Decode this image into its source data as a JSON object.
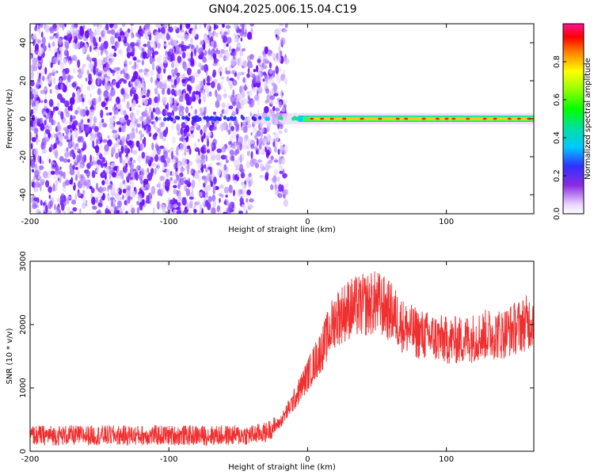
{
  "figure": {
    "title": "GN04.2025.006.15.04.C19",
    "xlim": [
      -200,
      163
    ]
  },
  "chart_data": [
    {
      "type": "heatmap",
      "title": "GN04.2025.006.15.04.C19",
      "xlabel": "Height of straight line (km)",
      "ylabel": "Frequency (Hz)",
      "xlim": [
        -200,
        163
      ],
      "ylim": [
        -50,
        50
      ],
      "xticks": [
        "-200",
        "-100",
        "0",
        "100"
      ],
      "xtick_values": [
        -200,
        -100,
        0,
        100
      ],
      "yticks": [
        "-40",
        "-20",
        "0",
        "20",
        "40"
      ],
      "ytick_values": [
        -40,
        -20,
        0,
        20,
        40
      ],
      "colorbar": {
        "label": "Normalized spectral amplitude",
        "range": [
          0,
          1
        ],
        "ticks": [
          "0.0",
          "0.2",
          "0.4",
          "0.6",
          "0.8"
        ],
        "tick_values": [
          0.0,
          0.2,
          0.4,
          0.6,
          0.8
        ],
        "colormap": "rainbow (white-violet-blue-cyan-green-yellow-red-magenta)"
      },
      "features": {
        "noise_region_x": [
          -200,
          -40
        ],
        "noise_edge_upper": [
          [
            -40,
            25
          ],
          [
            -20,
            50
          ]
        ],
        "noise_edge_lower": [
          [
            -40,
            -25
          ],
          [
            -10,
            -50
          ]
        ],
        "carrier_line_freq_hz": 0,
        "strong_carrier_x": [
          0,
          163
        ]
      },
      "grid": false
    },
    {
      "type": "line",
      "xlabel": "Height of straight line (km)",
      "ylabel": "SNR (10 * v/v)",
      "xlim": [
        -200,
        163
      ],
      "ylim": [
        0,
        3000
      ],
      "xticks": [
        "-200",
        "-100",
        "0",
        "100"
      ],
      "xtick_values": [
        -200,
        -100,
        0,
        100
      ],
      "yticks": [
        "0",
        "1000",
        "2000",
        "3000"
      ],
      "ytick_values": [
        0,
        1000,
        2000,
        3000
      ],
      "series": [
        {
          "color": "#f03030",
          "x": [
            -200,
            -150,
            -100,
            -50,
            -40,
            -30,
            -20,
            -10,
            0,
            10,
            20,
            30,
            40,
            50,
            60,
            70,
            80,
            90,
            100,
            110,
            120,
            130,
            140,
            150,
            160,
            163
          ],
          "y": [
            250,
            250,
            250,
            250,
            260,
            300,
            450,
            800,
            1200,
            1600,
            2100,
            2250,
            2300,
            2350,
            2200,
            1950,
            1850,
            1800,
            1750,
            1750,
            1800,
            1850,
            1850,
            1950,
            2050,
            2100
          ]
        }
      ],
      "grid": false
    }
  ]
}
